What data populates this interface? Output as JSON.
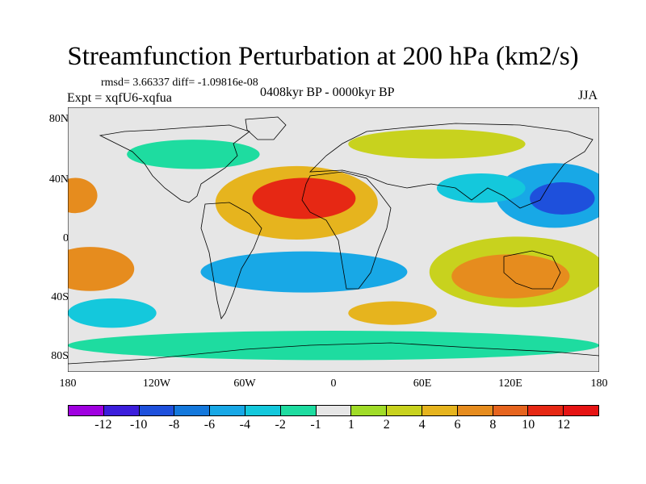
{
  "title": "Streamfunction Perturbation at 200 hPa (km2/s)",
  "stats": "rmsd= 3.66337 diff= -1.09816e-08",
  "expt": "Expt = xqfU6-xqfua",
  "period": "0408kyr BP - 0000kyr BP",
  "season": "JJA",
  "y_axis": {
    "ticks": [
      "80N",
      "40N",
      "0",
      "40S",
      "80S"
    ],
    "values": [
      80,
      40,
      0,
      -40,
      -80
    ]
  },
  "x_axis": {
    "ticks": [
      "180",
      "120W",
      "60W",
      "0",
      "60E",
      "120E",
      "180"
    ],
    "values": [
      -180,
      -120,
      -60,
      0,
      60,
      120,
      180
    ]
  },
  "colorbar": {
    "labels": [
      "-12",
      "-10",
      "-8",
      "-6",
      "-4",
      "-2",
      "-1",
      "1",
      "2",
      "4",
      "6",
      "8",
      "10",
      "12"
    ],
    "colors": [
      "#a000e0",
      "#3c1edc",
      "#1e50dc",
      "#1478dc",
      "#18a8e6",
      "#14c8dc",
      "#1edca0",
      "#e6e6e6",
      "#a0dc28",
      "#c8d21e",
      "#e6b41e",
      "#e68c1e",
      "#e6641e",
      "#e62814",
      "#e61414"
    ]
  },
  "fields": [
    {
      "name": "n-pacific-low",
      "lon": 155,
      "lat": 28,
      "rx": 22,
      "ry": 11,
      "level": 2
    },
    {
      "name": "n-pacific-low-outer",
      "lon": 150,
      "lat": 30,
      "rx": 40,
      "ry": 22,
      "level": 4
    },
    {
      "name": "atlantic-high",
      "lon": -20,
      "lat": 28,
      "rx": 35,
      "ry": 14,
      "level": 13
    },
    {
      "name": "atlantic-high-outer",
      "lon": -25,
      "lat": 25,
      "rx": 55,
      "ry": 25,
      "level": 10
    },
    {
      "name": "e-pacific-high",
      "lon": -175,
      "lat": 30,
      "rx": 15,
      "ry": 12,
      "level": 11
    },
    {
      "name": "s-pacific-high",
      "lon": -165,
      "lat": -20,
      "rx": 30,
      "ry": 15,
      "level": 11
    },
    {
      "name": "australia-high",
      "lon": 120,
      "lat": -25,
      "rx": 40,
      "ry": 15,
      "level": 11
    },
    {
      "name": "australia-high-outer",
      "lon": 125,
      "lat": -22,
      "rx": 60,
      "ry": 24,
      "level": 9
    },
    {
      "name": "s-atlantic-low",
      "lon": -20,
      "lat": -22,
      "rx": 70,
      "ry": 14,
      "level": 4
    },
    {
      "name": "s-indian-high",
      "lon": 40,
      "lat": -50,
      "rx": 30,
      "ry": 8,
      "level": 10
    },
    {
      "name": "n-canada-low",
      "lon": -95,
      "lat": 58,
      "rx": 45,
      "ry": 10,
      "level": 6
    },
    {
      "name": "eurasia-high",
      "lon": 70,
      "lat": 65,
      "rx": 60,
      "ry": 10,
      "level": 9
    },
    {
      "name": "s-ocean-low",
      "lon": 0,
      "lat": -72,
      "rx": 180,
      "ry": 10,
      "level": 6
    },
    {
      "name": "china-low",
      "lon": 100,
      "lat": 35,
      "rx": 30,
      "ry": 10,
      "level": 5
    },
    {
      "name": "w-pacific-low",
      "lon": -150,
      "lat": -50,
      "rx": 30,
      "ry": 10,
      "level": 5
    }
  ]
}
